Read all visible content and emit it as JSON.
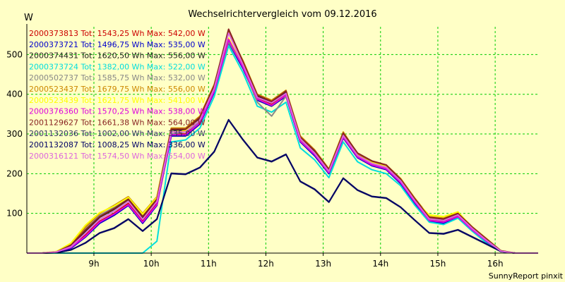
{
  "chart_data": {
    "type": "line",
    "title": "Wechselrichtervergleich vom 09.12.2016",
    "ylabel": "W",
    "xlabel": "",
    "footer": "SunnyReport pinxit",
    "ylim": [
      0,
      570
    ],
    "xlim": [
      7.83,
      16.75
    ],
    "yticks": [
      100,
      200,
      300,
      400,
      500
    ],
    "xticks": [
      {
        "value": 9,
        "label": "9h"
      },
      {
        "value": 10,
        "label": "10h"
      },
      {
        "value": 11,
        "label": "11h"
      },
      {
        "value": 12,
        "label": "12h"
      },
      {
        "value": 13,
        "label": "13h"
      },
      {
        "value": 14,
        "label": "14h"
      },
      {
        "value": 15,
        "label": "15h"
      },
      {
        "value": 16,
        "label": "16h"
      }
    ],
    "grid": true,
    "x": [
      7.83,
      8.1,
      8.35,
      8.6,
      8.85,
      9.1,
      9.35,
      9.6,
      9.85,
      10.1,
      10.35,
      10.6,
      10.85,
      11.1,
      11.35,
      11.6,
      11.85,
      12.1,
      12.35,
      12.6,
      12.85,
      13.1,
      13.35,
      13.6,
      13.85,
      14.1,
      14.35,
      14.6,
      14.85,
      15.1,
      15.35,
      15.6,
      15.85,
      16.1,
      16.35,
      16.6,
      16.75
    ],
    "series": [
      {
        "name": "2000373813",
        "legend": "2000373813 Tot: 1543,25 Wh Max: 542,00 W",
        "color": "#cc0000",
        "values": [
          0,
          0,
          2,
          15,
          45,
          80,
          100,
          125,
          80,
          125,
          300,
          300,
          330,
          410,
          540,
          470,
          390,
          375,
          400,
          285,
          250,
          205,
          295,
          245,
          225,
          215,
          180,
          130,
          85,
          80,
          95,
          60,
          30,
          5,
          0,
          0,
          0
        ]
      },
      {
        "name": "2000373721",
        "legend": "2000373721 Tot: 1496,75 Wh Max: 535,00 W",
        "color": "#0000cc",
        "values": [
          0,
          0,
          2,
          12,
          40,
          75,
          95,
          120,
          75,
          120,
          295,
          295,
          325,
          405,
          530,
          465,
          385,
          370,
          395,
          280,
          245,
          200,
          290,
          240,
          220,
          210,
          175,
          125,
          80,
          75,
          90,
          58,
          28,
          5,
          0,
          0,
          0
        ]
      },
      {
        "name": "2000374431",
        "legend": "2000374431 Tot: 1620,50 Wh Max: 556,00 W",
        "color": "#222222",
        "values": [
          0,
          0,
          3,
          18,
          55,
          90,
          110,
          135,
          90,
          135,
          310,
          310,
          340,
          420,
          556,
          480,
          395,
          380,
          405,
          290,
          255,
          210,
          300,
          250,
          230,
          220,
          185,
          135,
          90,
          85,
          100,
          65,
          35,
          5,
          0,
          0,
          0
        ]
      },
      {
        "name": "2000373724",
        "legend": "2000373724 Tot: 1382,00 Wh Max: 522,00 W",
        "color": "#00dddd",
        "values": [
          0,
          0,
          0,
          0,
          0,
          0,
          0,
          0,
          0,
          30,
          280,
          285,
          315,
          395,
          522,
          455,
          370,
          355,
          380,
          265,
          235,
          190,
          280,
          230,
          210,
          200,
          170,
          120,
          78,
          72,
          88,
          55,
          25,
          4,
          0,
          0,
          0
        ]
      },
      {
        "name": "2000502737",
        "legend": "2000502737 Tot: 1585,75 Wh Max: 532,00 W",
        "color": "#888888",
        "values": [
          0,
          0,
          3,
          20,
          60,
          95,
          115,
          138,
          95,
          138,
          300,
          305,
          330,
          410,
          532,
          470,
          380,
          345,
          395,
          285,
          250,
          205,
          295,
          245,
          225,
          215,
          180,
          130,
          88,
          82,
          98,
          62,
          32,
          5,
          0,
          0,
          0
        ]
      },
      {
        "name": "2000523437",
        "legend": "2000523437 Tot: 1679,75 Wh Max: 556,00 W",
        "color": "#cc8800",
        "values": [
          0,
          0,
          4,
          22,
          65,
          100,
          120,
          142,
          100,
          142,
          315,
          315,
          345,
          425,
          556,
          485,
          400,
          385,
          410,
          295,
          260,
          212,
          305,
          250,
          232,
          222,
          188,
          138,
          92,
          88,
          102,
          66,
          36,
          6,
          0,
          0,
          0
        ]
      },
      {
        "name": "2000523439",
        "legend": "2000523439 Tot: 1621,75 Wh Max: 541,00 W",
        "color": "#ffff00",
        "values": [
          0,
          0,
          4,
          25,
          70,
          102,
          118,
          140,
          98,
          140,
          305,
          308,
          335,
          412,
          541,
          472,
          388,
          372,
          398,
          288,
          252,
          206,
          298,
          246,
          228,
          218,
          182,
          132,
          96,
          92,
          104,
          64,
          34,
          5,
          0,
          0,
          0
        ]
      },
      {
        "name": "2000376360",
        "legend": "2000376360 Tot: 1570,25 Wh Max: 538,00 W",
        "color": "#dd00dd",
        "values": [
          0,
          0,
          2,
          14,
          42,
          78,
          98,
          122,
          78,
          122,
          298,
          298,
          328,
          408,
          538,
          468,
          388,
          372,
          398,
          282,
          248,
          202,
          292,
          242,
          222,
          212,
          178,
          128,
          82,
          78,
          92,
          58,
          30,
          5,
          0,
          0,
          0
        ]
      },
      {
        "name": "2001129627",
        "legend": "2001129627 Tot: 1661,38 Wh Max: 564,00 W",
        "color": "#882222",
        "values": [
          0,
          0,
          3,
          20,
          58,
          92,
          112,
          136,
          92,
          136,
          312,
          312,
          342,
          422,
          564,
          482,
          398,
          382,
          408,
          292,
          258,
          210,
          302,
          252,
          232,
          222,
          186,
          136,
          90,
          86,
          100,
          65,
          35,
          6,
          0,
          0,
          0
        ]
      },
      {
        "name": "2001132036",
        "legend": "2001132036 Tot: 1002,00 Wh Max: 335,00 W",
        "color": "#333366",
        "values": [
          0,
          0,
          1,
          8,
          25,
          50,
          62,
          85,
          55,
          85,
          200,
          198,
          215,
          255,
          335,
          285,
          240,
          230,
          248,
          180,
          160,
          128,
          188,
          158,
          142,
          138,
          115,
          82,
          50,
          48,
          58,
          40,
          22,
          4,
          0,
          0,
          0
        ]
      },
      {
        "name": "2001132087",
        "legend": "2001132087 Tot: 1008,25 Wh Max: 336,00 W",
        "color": "#000066",
        "values": [
          0,
          0,
          1,
          8,
          26,
          51,
          63,
          86,
          56,
          86,
          201,
          199,
          216,
          256,
          336,
          286,
          241,
          231,
          249,
          181,
          161,
          129,
          189,
          159,
          143,
          139,
          116,
          83,
          51,
          49,
          59,
          41,
          23,
          4,
          0,
          0,
          0
        ]
      },
      {
        "name": "2000316121",
        "legend": "2000316121 Tot: 1574,50 Wh Max: 554,00 W",
        "color": "#dd66dd",
        "values": [
          0,
          0,
          3,
          16,
          50,
          85,
          105,
          130,
          85,
          130,
          305,
          305,
          335,
          415,
          554,
          475,
          392,
          378,
          402,
          288,
          252,
          206,
          296,
          246,
          226,
          216,
          182,
          132,
          86,
          82,
          96,
          62,
          32,
          5,
          0,
          0,
          0
        ]
      }
    ]
  }
}
